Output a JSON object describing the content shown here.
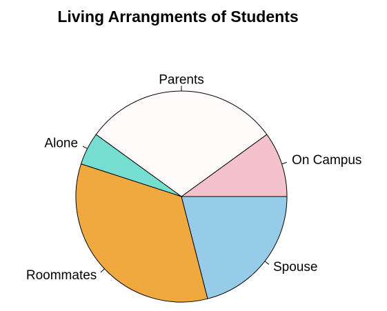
{
  "chart_data": {
    "type": "pie",
    "title": "Living Arrangments of Students",
    "slices": [
      {
        "label": "On Campus",
        "value": 10,
        "color": "#F4C2CC"
      },
      {
        "label": "Parents",
        "value": 30,
        "color": "#FFFAFA"
      },
      {
        "label": "Alone",
        "value": 5,
        "color": "#76DDD1"
      },
      {
        "label": "Roommates",
        "value": 34,
        "color": "#F0A93E"
      },
      {
        "label": "Spouse",
        "value": 21,
        "color": "#97CCE8"
      }
    ],
    "start_angle_deg": 0,
    "direction": "counterclockwise"
  }
}
